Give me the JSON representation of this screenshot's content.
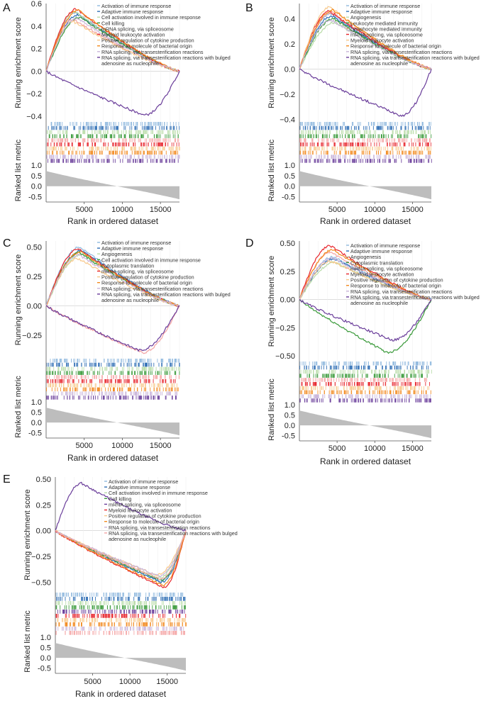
{
  "common": {
    "ylabel_top": "Running enrichment score",
    "ylabel_bottom": "Ranked list metric",
    "xlabel": "Rank in ordered dataset",
    "xticks": [
      5000,
      10000,
      15000
    ],
    "xlim": [
      0,
      17500
    ],
    "metric_ticks": [
      1.0,
      0.5,
      0.0,
      -0.5
    ],
    "metric_ylim": [
      -0.75,
      1.1
    ]
  },
  "colors": [
    "#8fb8de",
    "#2f6fb5",
    "#b9dca8",
    "#3a9a3a",
    "#f4a3a3",
    "#e8262d",
    "#f8c88a",
    "#f28a1e",
    "#c9b4d9",
    "#6a3d9a"
  ],
  "chart_data": [
    {
      "panel": "A",
      "type": "line",
      "ylim": [
        -0.45,
        0.6
      ],
      "yticks": [
        0.6,
        0.4,
        0.2,
        0.0,
        -0.2,
        -0.4
      ],
      "tick_labels": [
        "0.6",
        "0.4",
        "0.2",
        "0.0",
        "−0.2",
        "−0.4"
      ],
      "series": [
        {
          "name": "Activation of immune response",
          "color_index": 0,
          "peak": 0.52,
          "peak_at": 4000
        },
        {
          "name": "Adaptive immune response",
          "color_index": 1,
          "peak": 0.5,
          "peak_at": 4200
        },
        {
          "name": "Cell activation involved in immune response",
          "color_index": 2,
          "peak": 0.53,
          "peak_at": 3800
        },
        {
          "name": "Cell killing",
          "color_index": 3,
          "peak": 0.48,
          "peak_at": 4500
        },
        {
          "name": "mRNA splicing, via spliceosome",
          "color_index": 4,
          "peak": 0.46,
          "peak_at": 3500
        },
        {
          "name": "Myeloid leukocyte activation",
          "color_index": 5,
          "peak": 0.55,
          "peak_at": 4000
        },
        {
          "name": "Positive regulation of cytokine production",
          "color_index": 6,
          "peak": 0.44,
          "peak_at": 3600
        },
        {
          "name": "Response to molecule of bacterial origin",
          "color_index": 7,
          "peak": 0.54,
          "peak_at": 4300
        },
        {
          "name": "RNA splicing, via transesterification reactions",
          "color_index": 8,
          "peak": 0.47,
          "peak_at": 4100
        },
        {
          "name": "RNA splicing, via transesterification reactions with bulged adenosine as nucleophile",
          "color_index": 9,
          "peak": -0.39,
          "peak_at": 12800
        }
      ]
    },
    {
      "panel": "B",
      "type": "line",
      "ylim": [
        -0.42,
        0.52
      ],
      "yticks": [
        0.4,
        0.2,
        0.0,
        -0.2,
        -0.4
      ],
      "tick_labels": [
        "0.4",
        "0.2",
        "0.0",
        "−0.2",
        "−0.4"
      ],
      "series": [
        {
          "name": "Activation of immune response",
          "color_index": 0,
          "peak": 0.44,
          "peak_at": 4200
        },
        {
          "name": "Adaptive immune response",
          "color_index": 1,
          "peak": 0.42,
          "peak_at": 4400
        },
        {
          "name": "Angiogenesis",
          "color_index": 2,
          "peak": 0.37,
          "peak_at": 4800
        },
        {
          "name": "Leukocyte mediated immunity",
          "color_index": 3,
          "peak": 0.4,
          "peak_at": 4600
        },
        {
          "name": "Lymphocyte mediated immunity",
          "color_index": 4,
          "peak": 0.45,
          "peak_at": 4300
        },
        {
          "name": "mRNA splicing, via spliceosome",
          "color_index": 5,
          "peak": 0.46,
          "peak_at": 4000
        },
        {
          "name": "Myeloid leukocyte activation",
          "color_index": 6,
          "peak": 0.49,
          "peak_at": 4100
        },
        {
          "name": "Response to molecule of bacterial origin",
          "color_index": 7,
          "peak": 0.47,
          "peak_at": 4500
        },
        {
          "name": "RNA splicing, via transesterification reactions",
          "color_index": 8,
          "peak": 0.39,
          "peak_at": 4200
        },
        {
          "name": "RNA splicing, via transesterification reactions with bulged adenosine as nucleophile",
          "color_index": 9,
          "peak": -0.37,
          "peak_at": 13500
        }
      ]
    },
    {
      "panel": "C",
      "type": "line",
      "ylim": [
        -0.45,
        0.55
      ],
      "yticks": [
        0.5,
        0.25,
        0.0,
        -0.25
      ],
      "tick_labels": [
        "0.50",
        "0.25",
        "0.00",
        "−0.25"
      ],
      "series": [
        {
          "name": "Activation of immune response",
          "color_index": 0,
          "peak": 0.5,
          "peak_at": 4500
        },
        {
          "name": "Adaptive immune response",
          "color_index": 1,
          "peak": 0.47,
          "peak_at": 4700
        },
        {
          "name": "Angiogenesis",
          "color_index": 2,
          "peak": 0.44,
          "peak_at": 4800
        },
        {
          "name": "Cell activation involved in immune response",
          "color_index": 3,
          "peak": 0.45,
          "peak_at": 4400
        },
        {
          "name": "Cytoplasmic translation",
          "color_index": 4,
          "peak": -0.4,
          "peak_at": 12600
        },
        {
          "name": "mRNA splicing, via spliceosome",
          "color_index": 5,
          "peak": 0.48,
          "peak_at": 4300
        },
        {
          "name": "Positive regulation of cytokine production",
          "color_index": 6,
          "peak": 0.4,
          "peak_at": 4200
        },
        {
          "name": "Response to molecule of bacterial origin",
          "color_index": 7,
          "peak": 0.46,
          "peak_at": 4600
        },
        {
          "name": "RNA splicing, via transesterification reactions",
          "color_index": 8,
          "peak": 0.43,
          "peak_at": 4400
        },
        {
          "name": "RNA splicing, via transesterification reactions with bulged adenosine as nucleophile",
          "color_index": 9,
          "peak": -0.38,
          "peak_at": 12200
        }
      ]
    },
    {
      "panel": "D",
      "type": "line",
      "ylim": [
        -0.55,
        0.52
      ],
      "yticks": [
        0.5,
        0.25,
        0.0,
        -0.25,
        -0.5
      ],
      "tick_labels": [
        "0.50",
        "0.25",
        "0.00",
        "−0.25",
        "−0.50"
      ],
      "series": [
        {
          "name": "Activation of immune response",
          "color_index": 0,
          "peak": 0.38,
          "peak_at": 4500
        },
        {
          "name": "Adaptive immune response",
          "color_index": 1,
          "peak": 0.36,
          "peak_at": 4700
        },
        {
          "name": "Angiogenesis",
          "color_index": 2,
          "peak": 0.33,
          "peak_at": 4800
        },
        {
          "name": "Cytoplasmic translation",
          "color_index": 3,
          "peak": -0.47,
          "peak_at": 11600
        },
        {
          "name": "mRNA splicing, via spliceosome",
          "color_index": 4,
          "peak": 0.42,
          "peak_at": 4200
        },
        {
          "name": "Myeloid leukocyte activation",
          "color_index": 5,
          "peak": 0.48,
          "peak_at": 4100
        },
        {
          "name": "Positive regulation of cytokine production",
          "color_index": 6,
          "peak": 0.34,
          "peak_at": 4300
        },
        {
          "name": "Response to molecule of bacterial origin",
          "color_index": 7,
          "peak": 0.44,
          "peak_at": 4500
        },
        {
          "name": "RNA splicing, via transesterification reactions",
          "color_index": 8,
          "peak": 0.37,
          "peak_at": 4400
        },
        {
          "name": "RNA splicing, via transesterification reactions with bulged adenosine as nucleophile",
          "color_index": 9,
          "peak": -0.36,
          "peak_at": 12300
        }
      ]
    },
    {
      "panel": "E",
      "type": "line",
      "ylim": [
        -0.6,
        0.52
      ],
      "yticks": [
        0.5,
        0.25,
        0.0,
        -0.25,
        -0.5
      ],
      "tick_labels": [
        "0.50",
        "0.25",
        "0.00",
        "−0.25",
        "−0.50"
      ],
      "series": [
        {
          "name": "Activation of immune response",
          "color_index": 0,
          "peak": -0.49,
          "peak_at": 14000
        },
        {
          "name": "Adaptive immune response",
          "color_index": 1,
          "peak": -0.5,
          "peak_at": 14200
        },
        {
          "name": "Cell activation involved in immune response",
          "color_index": 2,
          "peak": -0.46,
          "peak_at": 13800
        },
        {
          "name": "Cell killing",
          "color_index": 3,
          "peak": -0.48,
          "peak_at": 14100
        },
        {
          "name": "mRNA splicing, via spliceosome",
          "color_index": 9,
          "peak": 0.46,
          "peak_at": 3500
        },
        {
          "name": "Myeloid leukocyte activation",
          "color_index": 5,
          "peak": -0.55,
          "peak_at": 14500
        },
        {
          "name": "Positive regulation of cytokine production",
          "color_index": 6,
          "peak": -0.43,
          "peak_at": 13600
        },
        {
          "name": "Response to molecule of bacterial origin",
          "color_index": 7,
          "peak": -0.53,
          "peak_at": 14400
        },
        {
          "name": "RNA splicing, via transesterification reactions",
          "color_index": 8,
          "peak": -0.44,
          "peak_at": 13900
        },
        {
          "name": "RNA splicing, via transesterification reactions with bulged adenosine as nucleophile",
          "color_index": 4,
          "peak": -0.47,
          "peak_at": 14100
        }
      ]
    }
  ]
}
